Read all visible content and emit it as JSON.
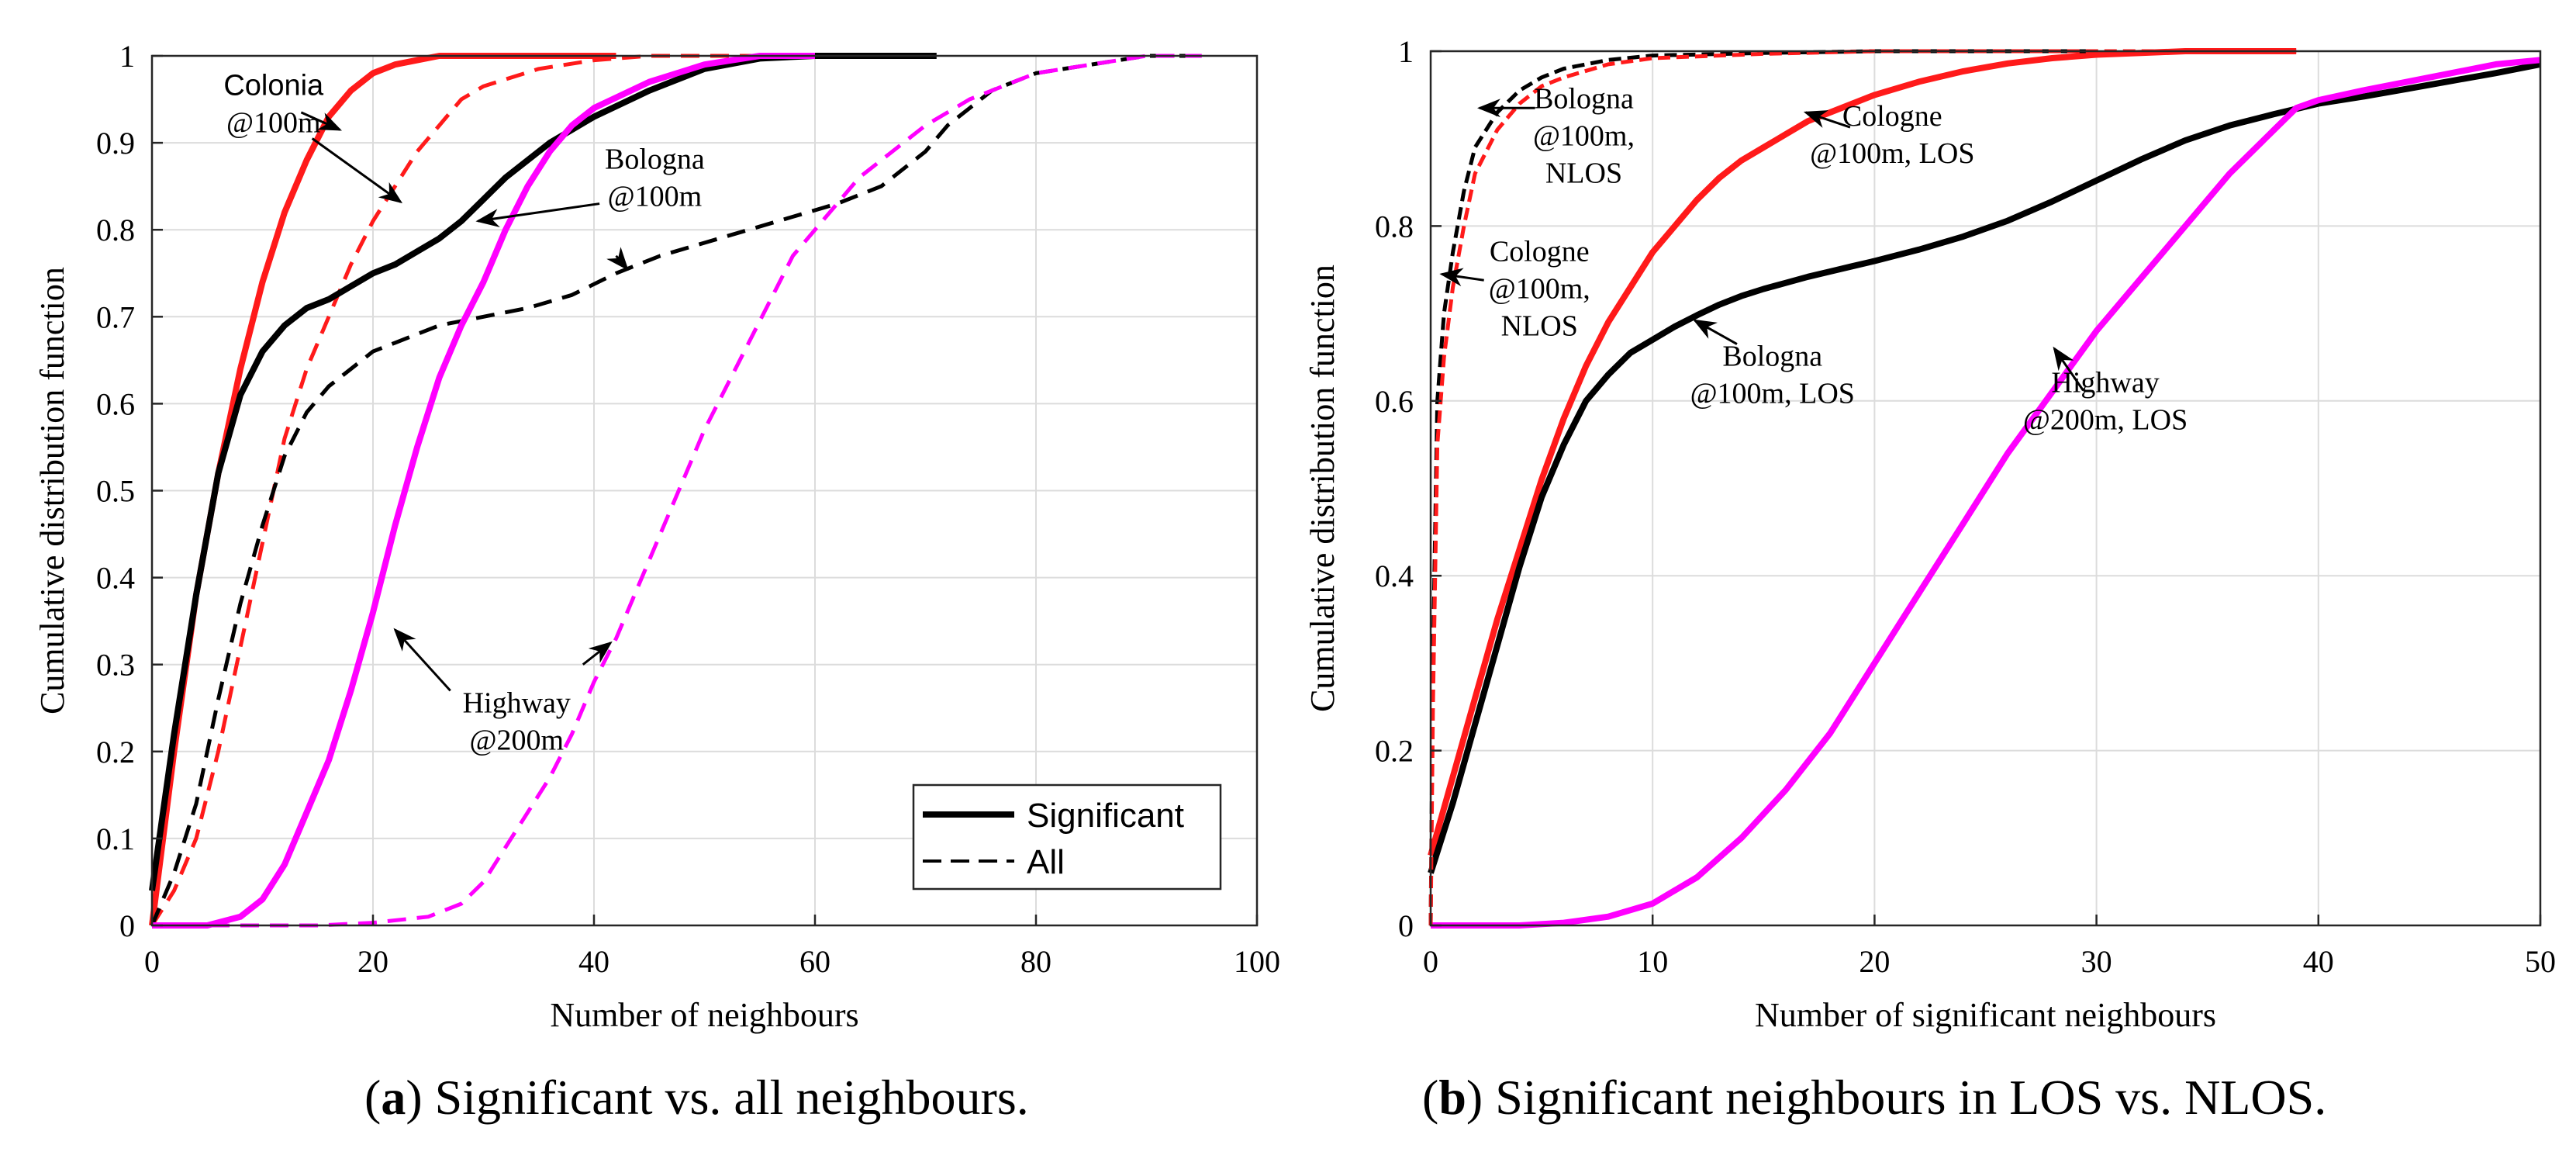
{
  "chart_data": [
    {
      "panel": "a",
      "type": "line",
      "caption": {
        "letter": "a",
        "text": "Significant vs. all neighbours."
      },
      "xlabel": "Number of neighbours",
      "ylabel": "Cumulative distribution function",
      "xlim": [
        0,
        100
      ],
      "ylim": [
        0,
        1
      ],
      "xticks": [
        0,
        20,
        40,
        60,
        80,
        100
      ],
      "yticks": [
        0,
        0.1,
        0.2,
        0.3,
        0.4,
        0.5,
        0.6,
        0.7,
        0.8,
        0.9,
        1
      ],
      "grid": true,
      "legend": {
        "position": "bottom-right",
        "entries": [
          {
            "label": "Significant",
            "style": "solid",
            "color": "#000000"
          },
          {
            "label": "All",
            "style": "dashed",
            "color": "#000000"
          }
        ]
      },
      "series": [
        {
          "name": "Colonia @100m - Significant",
          "color": "#ff1a1a",
          "style": "solid",
          "x": [
            0,
            2,
            4,
            6,
            8,
            10,
            12,
            14,
            16,
            18,
            20,
            22,
            24,
            26,
            28,
            30,
            35,
            40,
            42
          ],
          "y": [
            0,
            0.2,
            0.38,
            0.52,
            0.64,
            0.74,
            0.82,
            0.88,
            0.93,
            0.96,
            0.98,
            0.99,
            0.995,
            1,
            1,
            1,
            1,
            1,
            1
          ]
        },
        {
          "name": "Colonia @100m - All",
          "color": "#ff1a1a",
          "style": "dashed",
          "x": [
            0,
            2,
            4,
            6,
            8,
            10,
            12,
            14,
            16,
            18,
            20,
            22,
            24,
            26,
            28,
            30,
            35,
            40,
            45,
            50,
            55,
            60
          ],
          "y": [
            0,
            0.04,
            0.1,
            0.2,
            0.32,
            0.44,
            0.56,
            0.64,
            0.7,
            0.76,
            0.81,
            0.85,
            0.89,
            0.92,
            0.95,
            0.965,
            0.985,
            0.995,
            1,
            1,
            1,
            1
          ]
        },
        {
          "name": "Bologna @100m - Significant",
          "color": "#000000",
          "style": "solid",
          "x": [
            0,
            2,
            4,
            6,
            8,
            10,
            12,
            14,
            16,
            18,
            20,
            22,
            24,
            26,
            28,
            30,
            32,
            34,
            36,
            38,
            40,
            45,
            50,
            55,
            60,
            65,
            70,
            71
          ],
          "y": [
            0.04,
            0.22,
            0.38,
            0.52,
            0.61,
            0.66,
            0.69,
            0.71,
            0.72,
            0.735,
            0.75,
            0.76,
            0.775,
            0.79,
            0.81,
            0.835,
            0.86,
            0.88,
            0.9,
            0.915,
            0.93,
            0.96,
            0.985,
            0.997,
            1,
            1,
            1,
            1
          ]
        },
        {
          "name": "Bologna @100m - All",
          "color": "#000000",
          "style": "dashed",
          "x": [
            0,
            2,
            4,
            6,
            8,
            10,
            12,
            14,
            16,
            18,
            20,
            22,
            24,
            26,
            28,
            30,
            34,
            38,
            42,
            46,
            50,
            54,
            58,
            62,
            66,
            68,
            70,
            72,
            74,
            76,
            80,
            85,
            90,
            95
          ],
          "y": [
            0,
            0.06,
            0.14,
            0.26,
            0.37,
            0.46,
            0.54,
            0.59,
            0.62,
            0.64,
            0.66,
            0.67,
            0.68,
            0.69,
            0.695,
            0.7,
            0.71,
            0.725,
            0.75,
            0.77,
            0.785,
            0.8,
            0.815,
            0.83,
            0.85,
            0.87,
            0.89,
            0.92,
            0.94,
            0.96,
            0.98,
            0.99,
            1,
            1
          ]
        },
        {
          "name": "Highway @200m - Significant",
          "color": "#ff00ff",
          "style": "solid",
          "x": [
            0,
            5,
            8,
            10,
            12,
            14,
            16,
            18,
            20,
            22,
            24,
            26,
            28,
            30,
            32,
            34,
            36,
            38,
            40,
            45,
            50,
            55,
            60
          ],
          "y": [
            0,
            0,
            0.01,
            0.03,
            0.07,
            0.13,
            0.19,
            0.27,
            0.36,
            0.46,
            0.55,
            0.63,
            0.69,
            0.74,
            0.8,
            0.85,
            0.89,
            0.92,
            0.94,
            0.97,
            0.99,
            1,
            1
          ]
        },
        {
          "name": "Highway @200m - All",
          "color": "#ff00ff",
          "style": "dashed",
          "x": [
            0,
            15,
            20,
            25,
            28,
            30,
            32,
            34,
            36,
            38,
            40,
            42,
            44,
            46,
            48,
            50,
            52,
            54,
            56,
            58,
            60,
            62,
            64,
            66,
            68,
            70,
            72,
            74,
            76,
            78,
            80,
            85,
            90,
            95
          ],
          "y": [
            0,
            0,
            0.003,
            0.01,
            0.025,
            0.05,
            0.09,
            0.13,
            0.17,
            0.22,
            0.28,
            0.33,
            0.39,
            0.45,
            0.51,
            0.57,
            0.62,
            0.67,
            0.72,
            0.77,
            0.8,
            0.83,
            0.86,
            0.88,
            0.9,
            0.92,
            0.935,
            0.95,
            0.96,
            0.97,
            0.98,
            0.99,
            1,
            1
          ]
        }
      ],
      "annotations": [
        {
          "lines": [
            "Colonia",
            "@100m"
          ]
        },
        {
          "lines": [
            "Bologna",
            "@100m"
          ]
        },
        {
          "lines": [
            "Highway",
            "@200m"
          ]
        }
      ]
    },
    {
      "panel": "b",
      "type": "line",
      "caption": {
        "letter": "b",
        "text": "Significant neighbours in LOS vs. NLOS."
      },
      "xlabel": "Number of significant neighbours",
      "ylabel": "Cumulative distribution function",
      "xlim": [
        0,
        50
      ],
      "ylim": [
        0,
        1
      ],
      "xticks": [
        0,
        10,
        20,
        30,
        40,
        50
      ],
      "yticks": [
        0,
        0.2,
        0.4,
        0.6,
        0.8,
        1
      ],
      "grid": true,
      "series": [
        {
          "name": "Cologne @100m, LOS",
          "color": "#ff1a1a",
          "style": "solid",
          "x": [
            0,
            1,
            2,
            3,
            4,
            5,
            6,
            7,
            8,
            9,
            10,
            11,
            12,
            13,
            14,
            15,
            16,
            17,
            18,
            19,
            20,
            22,
            24,
            26,
            28,
            30,
            32,
            34,
            36,
            38,
            39
          ],
          "y": [
            0.08,
            0.17,
            0.26,
            0.35,
            0.43,
            0.51,
            0.58,
            0.64,
            0.69,
            0.73,
            0.77,
            0.8,
            0.83,
            0.855,
            0.875,
            0.89,
            0.905,
            0.92,
            0.93,
            0.94,
            0.95,
            0.965,
            0.977,
            0.986,
            0.992,
            0.996,
            0.998,
            1,
            1,
            1,
            1
          ]
        },
        {
          "name": "Bologna @100m, LOS",
          "color": "#000000",
          "style": "solid",
          "x": [
            0,
            1,
            2,
            3,
            4,
            5,
            6,
            7,
            8,
            9,
            10,
            11,
            12,
            13,
            14,
            15,
            16,
            17,
            18,
            19,
            20,
            22,
            24,
            26,
            28,
            30,
            32,
            34,
            36,
            38,
            40,
            42,
            44,
            46,
            48,
            50
          ],
          "y": [
            0.06,
            0.14,
            0.23,
            0.32,
            0.41,
            0.49,
            0.55,
            0.6,
            0.63,
            0.655,
            0.67,
            0.685,
            0.698,
            0.71,
            0.72,
            0.728,
            0.735,
            0.742,
            0.748,
            0.754,
            0.76,
            0.773,
            0.788,
            0.806,
            0.828,
            0.852,
            0.876,
            0.898,
            0.915,
            0.928,
            0.94,
            0.948,
            0.957,
            0.966,
            0.975,
            0.985
          ]
        },
        {
          "name": "Highway @200m, LOS",
          "color": "#ff00ff",
          "style": "solid",
          "x": [
            0,
            2,
            4,
            6,
            8,
            10,
            12,
            14,
            16,
            18,
            20,
            22,
            24,
            26,
            28,
            30,
            32,
            34,
            36,
            38,
            39,
            40,
            42,
            44,
            46,
            48,
            50
          ],
          "y": [
            0,
            0,
            0,
            0.003,
            0.01,
            0.025,
            0.055,
            0.1,
            0.155,
            0.22,
            0.3,
            0.38,
            0.46,
            0.54,
            0.61,
            0.68,
            0.74,
            0.8,
            0.86,
            0.91,
            0.935,
            0.944,
            0.955,
            0.965,
            0.975,
            0.985,
            0.99
          ]
        },
        {
          "name": "Bologna @100m, NLOS",
          "color": "#000000",
          "style": "dashed",
          "x": [
            0,
            0.1,
            0.3,
            0.6,
            1,
            1.5,
            2,
            3,
            4,
            5,
            6,
            8,
            10,
            15,
            20,
            25,
            30
          ],
          "y": [
            0,
            0.3,
            0.6,
            0.7,
            0.77,
            0.84,
            0.89,
            0.93,
            0.955,
            0.97,
            0.98,
            0.99,
            0.995,
            0.998,
            1,
            1,
            1
          ]
        },
        {
          "name": "Cologne @100m, NLOS",
          "color": "#ff1a1a",
          "style": "dashed",
          "x": [
            0,
            0.1,
            0.3,
            0.6,
            1,
            1.5,
            2,
            3,
            4,
            5,
            6,
            8,
            10,
            15,
            20,
            25,
            30,
            35,
            39
          ],
          "y": [
            0,
            0.25,
            0.55,
            0.65,
            0.73,
            0.8,
            0.86,
            0.91,
            0.94,
            0.96,
            0.97,
            0.985,
            0.992,
            0.997,
            1,
            1,
            1,
            1,
            1
          ]
        }
      ],
      "annotations": [
        {
          "lines": [
            "Bologna",
            "@100m,",
            "NLOS"
          ]
        },
        {
          "lines": [
            "Cologne",
            "@100m, LOS"
          ]
        },
        {
          "lines": [
            "Cologne",
            "@100m,",
            "NLOS"
          ]
        },
        {
          "lines": [
            "Bologna",
            "@100m, LOS"
          ]
        },
        {
          "lines": [
            "Highway",
            "@200m, LOS"
          ]
        }
      ]
    }
  ]
}
